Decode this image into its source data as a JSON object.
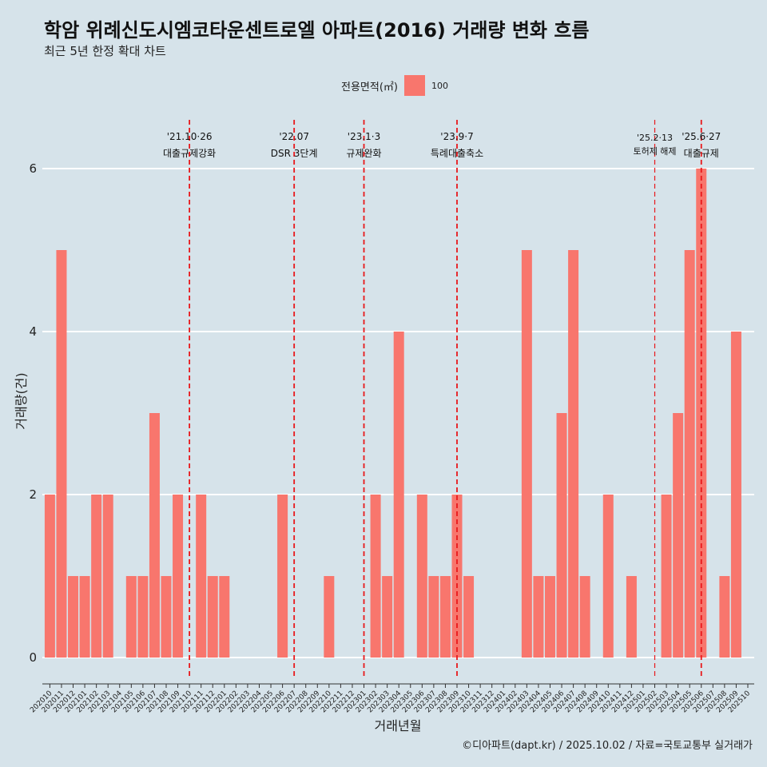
{
  "header": {
    "title": "학암 위례신도시엠코타운센트로엘 아파트(2016) 거래량 변화 흐름",
    "subtitle": "최근 5년 한정 확대 차트"
  },
  "legend": {
    "title": "전용면적(㎡)",
    "label": "100",
    "color": "#f8766d"
  },
  "caption": "©디아파트(dapt.kr) / 2025.10.02 / 자료=국토교통부 실거래가",
  "chart_data": {
    "type": "bar",
    "title": "학암 위례신도시엠코타운센트로엘 아파트(2016) 거래량 변화 흐름",
    "xlabel": "거래년월",
    "ylabel": "거래량(건)",
    "ylim": [
      0,
      6
    ],
    "yticks": [
      0,
      2,
      4,
      6
    ],
    "grid": true,
    "bar_color": "#f8766d",
    "legend_position": "top",
    "categories": [
      "202010",
      "202011",
      "202012",
      "202101",
      "202102",
      "202103",
      "202104",
      "202105",
      "202106",
      "202107",
      "202108",
      "202109",
      "202110",
      "202111",
      "202112",
      "202201",
      "202202",
      "202203",
      "202204",
      "202205",
      "202206",
      "202207",
      "202208",
      "202209",
      "202210",
      "202211",
      "202212",
      "202301",
      "202302",
      "202303",
      "202304",
      "202305",
      "202306",
      "202307",
      "202308",
      "202309",
      "202310",
      "202311",
      "202312",
      "202401",
      "202402",
      "202403",
      "202404",
      "202405",
      "202406",
      "202407",
      "202408",
      "202409",
      "202410",
      "202411",
      "202412",
      "202501",
      "202502",
      "202503",
      "202504",
      "202505",
      "202506",
      "202507",
      "202508",
      "202509",
      "202510"
    ],
    "values": [
      2,
      5,
      1,
      1,
      2,
      2,
      0,
      1,
      1,
      3,
      1,
      2,
      0,
      2,
      1,
      1,
      0,
      0,
      0,
      0,
      2,
      0,
      0,
      0,
      1,
      0,
      0,
      0,
      2,
      1,
      4,
      0,
      2,
      1,
      1,
      2,
      1,
      0,
      0,
      0,
      0,
      5,
      1,
      1,
      3,
      5,
      1,
      0,
      2,
      0,
      1,
      0,
      0,
      2,
      3,
      5,
      6,
      0,
      1,
      4,
      0
    ],
    "events": [
      {
        "date_line": "'21.10·26",
        "label": "대출규제강화",
        "month": "202110",
        "small": false
      },
      {
        "date_line": "'22.07",
        "label": "DSR 3단계",
        "month": "202207",
        "small": false
      },
      {
        "date_line": "'23.1·3",
        "label": "규제완화",
        "month": "202301",
        "small": false
      },
      {
        "date_line": "'23.9·7",
        "label": "특례대출축소",
        "month": "202309",
        "small": false
      },
      {
        "date_line": "'25.2·13",
        "label": "토허제 해제",
        "month": "202502",
        "small": true
      },
      {
        "date_line": "'25.6·27",
        "label": "대출규제",
        "month": "202506",
        "small": false
      }
    ]
  }
}
